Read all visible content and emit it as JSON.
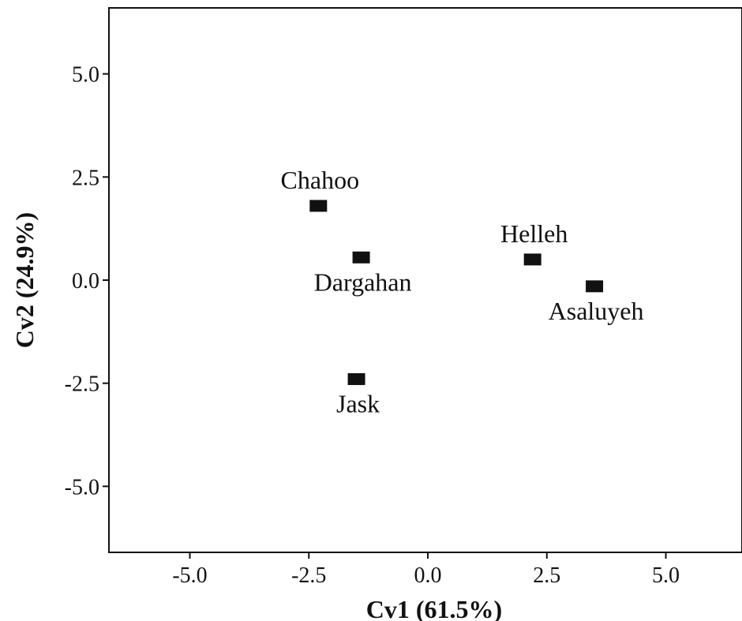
{
  "chart_data": {
    "type": "scatter",
    "title": "",
    "xlabel": "Cv1 (61.5%)",
    "ylabel": "Cv2 (24.9%)",
    "xlim": [
      -6.7,
      6.6
    ],
    "ylim": [
      -6.6,
      6.6
    ],
    "xticks": [
      -5.0,
      -2.5,
      0.0,
      2.5,
      5.0
    ],
    "xtick_labels": [
      "-5.0",
      "-2.5",
      "0.0",
      "2.5",
      "5.0"
    ],
    "yticks": [
      5.0,
      2.5,
      0.0,
      -2.5,
      -5.0
    ],
    "ytick_labels": [
      "5.0",
      "2.5",
      "0.0",
      "-2.5",
      "-5.0"
    ],
    "grid": false,
    "points": [
      {
        "label": "Chahoo",
        "x": -2.3,
        "y": 1.8,
        "label_pos": "above"
      },
      {
        "label": "Dargahan",
        "x": -1.4,
        "y": 0.55,
        "label_pos": "below"
      },
      {
        "label": "Jask",
        "x": -1.5,
        "y": -2.4,
        "label_pos": "below"
      },
      {
        "label": "Helleh",
        "x": 2.2,
        "y": 0.5,
        "label_pos": "above"
      },
      {
        "label": "Asaluyeh",
        "x": 3.5,
        "y": -0.15,
        "label_pos": "below"
      }
    ],
    "marker": "square",
    "marker_color": "#111111"
  }
}
